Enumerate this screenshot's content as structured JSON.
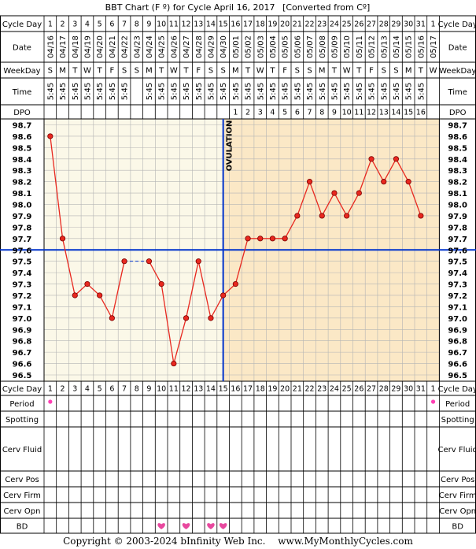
{
  "header": {
    "title": "BBT Chart (F º) for Cycle April 16, 2017",
    "converted": "[Converted from Cº]"
  },
  "row_labels": {
    "cycle_day": "Cycle Day",
    "date": "Date",
    "weekday": "WeekDay",
    "time": "Time",
    "dpo": "DPO",
    "period": "Period",
    "spotting": "Spotting",
    "cerv_fluid": "Cerv Fluid",
    "cerv_pos": "Cerv Pos",
    "cerv_firm": "Cerv Firm",
    "cerv_opn": "Cerv Opn",
    "bd": "BD"
  },
  "days": [
    "1",
    "2",
    "3",
    "4",
    "5",
    "6",
    "7",
    "8",
    "9",
    "10",
    "11",
    "12",
    "13",
    "14",
    "15",
    "16",
    "17",
    "18",
    "19",
    "20",
    "21",
    "22",
    "23",
    "24",
    "25",
    "26",
    "27",
    "28",
    "29",
    "30",
    "31",
    "1"
  ],
  "dates": [
    "04/16",
    "04/17",
    "04/18",
    "04/19",
    "04/20",
    "04/21",
    "04/22",
    "04/23",
    "04/24",
    "04/25",
    "04/26",
    "04/27",
    "04/28",
    "04/29",
    "04/30",
    "05/01",
    "05/02",
    "05/03",
    "05/04",
    "05/05",
    "05/06",
    "05/07",
    "05/08",
    "05/09",
    "05/10",
    "05/11",
    "05/12",
    "05/13",
    "05/14",
    "05/15",
    "05/16",
    "05/17"
  ],
  "weekdays": [
    "S",
    "M",
    "T",
    "W",
    "T",
    "F",
    "S",
    "S",
    "M",
    "T",
    "W",
    "T",
    "F",
    "S",
    "S",
    "M",
    "T",
    "W",
    "T",
    "F",
    "S",
    "S",
    "M",
    "T",
    "W",
    "T",
    "F",
    "S",
    "S",
    "M",
    "T",
    "W"
  ],
  "times": [
    "5:45",
    "5:45",
    "5:45",
    "5:45",
    "5:45",
    "5:45",
    "5:45",
    "",
    "5:45",
    "5:45",
    "5:45",
    "5:45",
    "5:45",
    "5:45",
    "5:45",
    "5:45",
    "5:45",
    "5:45",
    "5:45",
    "5:45",
    "5:45",
    "5:45",
    "5:45",
    "5:45",
    "5:45",
    "5:45",
    "5:45",
    "5:45",
    "5:45",
    "5:45",
    "5:45",
    ""
  ],
  "dpo": [
    "",
    "",
    "",
    "",
    "",
    "",
    "",
    "",
    "",
    "",
    "",
    "",
    "",
    "",
    "",
    "1",
    "2",
    "3",
    "4",
    "5",
    "6",
    "7",
    "8",
    "9",
    "10",
    "11",
    "12",
    "13",
    "14",
    "15",
    "16",
    ""
  ],
  "chart_data": {
    "type": "line",
    "ylim": [
      96.5,
      98.7
    ],
    "yticks": [
      "98.7",
      "98.6",
      "98.5",
      "98.4",
      "98.3",
      "98.2",
      "98.1",
      "98.0",
      "97.9",
      "97.8",
      "97.7",
      "97.6",
      "97.5",
      "97.4",
      "97.3",
      "97.2",
      "97.1",
      "97.0",
      "96.9",
      "96.8",
      "96.7",
      "96.6",
      "96.5"
    ],
    "x": [
      "1",
      "2",
      "3",
      "4",
      "5",
      "6",
      "7",
      "8",
      "9",
      "10",
      "11",
      "12",
      "13",
      "14",
      "15",
      "16",
      "17",
      "18",
      "19",
      "20",
      "21",
      "22",
      "23",
      "24",
      "25",
      "26",
      "27",
      "28",
      "29",
      "30",
      "31"
    ],
    "temperatures": [
      98.6,
      97.7,
      97.2,
      97.3,
      97.2,
      97.0,
      97.5,
      null,
      97.5,
      97.3,
      96.6,
      97.0,
      97.5,
      97.0,
      97.2,
      97.3,
      97.7,
      97.7,
      97.7,
      97.7,
      97.9,
      98.2,
      97.9,
      98.1,
      97.9,
      98.1,
      98.4,
      98.2,
      98.4,
      98.2,
      97.9
    ],
    "coverline": 97.6,
    "ovulation_day": 15,
    "ovulation_label": "OVULATION",
    "gap_days": [
      8
    ],
    "colors": {
      "pre_ovulation_bg": "#fbf8e8",
      "post_ovulation_bg": "#fbe8c6",
      "grid": "#b4b4b4",
      "line": "#e8281f",
      "point": "#e8281f",
      "coverline": "#0033cc",
      "ovulation_line": "#0033cc",
      "period_dot": "#ff3fb4",
      "heart": "#e8489e"
    }
  },
  "period_days": [
    1,
    32
  ],
  "bd_days": [
    10,
    12,
    14,
    15
  ],
  "footer": {
    "copyright": "Copyright © 2003-2024 bInfinity Web Inc.",
    "site": "www.MyMonthlyCycles.com"
  }
}
